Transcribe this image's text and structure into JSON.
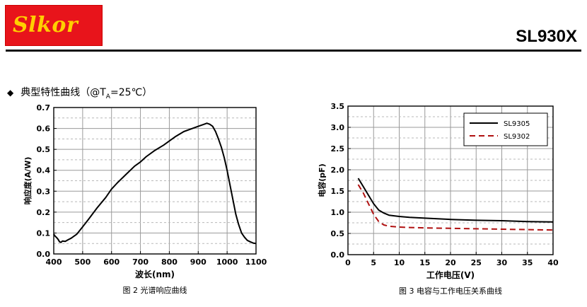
{
  "header": {
    "logo_text": "Slkor",
    "part_number": "SL930X"
  },
  "section": {
    "bullet": "◆",
    "title": "典型特性曲线（@T",
    "title_sub": "A",
    "title_tail": "=25℃）"
  },
  "chart_data": [
    {
      "type": "line",
      "caption": "图 2  光谱响应曲线",
      "xlabel": "波长(nm)",
      "ylabel": "响应度(A/W)",
      "xlim": [
        400,
        1100
      ],
      "ylim": [
        0.0,
        0.7
      ],
      "xticks": [
        "400",
        "500",
        "600",
        "700",
        "800",
        "900",
        "1000",
        "1100"
      ],
      "yticks": [
        "0.0",
        "0.1",
        "0.2",
        "0.3",
        "0.4",
        "0.5",
        "0.6",
        "0.7"
      ],
      "grid": true,
      "series": [
        {
          "color": "#000000",
          "x": [
            400,
            405,
            410,
            415,
            420,
            425,
            430,
            440,
            450,
            460,
            480,
            500,
            520,
            550,
            580,
            600,
            620,
            650,
            680,
            700,
            720,
            750,
            780,
            800,
            820,
            850,
            880,
            900,
            920,
            930,
            940,
            950,
            960,
            970,
            980,
            990,
            1000,
            1010,
            1020,
            1030,
            1040,
            1050,
            1060,
            1070,
            1080,
            1090,
            1100
          ],
          "y": [
            0.095,
            0.085,
            0.078,
            0.07,
            0.058,
            0.055,
            0.062,
            0.06,
            0.068,
            0.075,
            0.095,
            0.13,
            0.165,
            0.22,
            0.27,
            0.31,
            0.34,
            0.38,
            0.42,
            0.44,
            0.465,
            0.495,
            0.52,
            0.54,
            0.56,
            0.585,
            0.6,
            0.61,
            0.62,
            0.625,
            0.62,
            0.61,
            0.585,
            0.55,
            0.51,
            0.46,
            0.4,
            0.33,
            0.26,
            0.19,
            0.14,
            0.1,
            0.08,
            0.065,
            0.058,
            0.052,
            0.05
          ]
        }
      ]
    },
    {
      "type": "line",
      "caption": "图 3  电容与工作电压关系曲线",
      "xlabel": "工作电压(V)",
      "ylabel": "电容(pF)",
      "xlim": [
        0,
        40
      ],
      "ylim": [
        0.0,
        3.5
      ],
      "xticks": [
        "0",
        "5",
        "10",
        "15",
        "20",
        "25",
        "30",
        "35",
        "40"
      ],
      "yticks": [
        "0.0",
        "0.5",
        "1.0",
        "1.5",
        "2.0",
        "2.5",
        "3.0",
        "3.5"
      ],
      "grid": true,
      "legend_position": "top-right",
      "series": [
        {
          "name": "SL9305",
          "color": "#000000",
          "dash": "solid",
          "x": [
            2,
            3,
            4,
            5,
            6,
            7,
            8,
            10,
            12,
            15,
            20,
            25,
            30,
            35,
            40
          ],
          "y": [
            1.8,
            1.6,
            1.4,
            1.2,
            1.05,
            0.98,
            0.93,
            0.9,
            0.88,
            0.86,
            0.83,
            0.81,
            0.8,
            0.78,
            0.77
          ]
        },
        {
          "name": "SL9302",
          "color": "#b01010",
          "dash": "dashed",
          "x": [
            2,
            3,
            4,
            5,
            6,
            7,
            8,
            10,
            12,
            15,
            20,
            25,
            30,
            35,
            40
          ],
          "y": [
            1.65,
            1.45,
            1.2,
            0.95,
            0.78,
            0.7,
            0.67,
            0.65,
            0.64,
            0.63,
            0.62,
            0.61,
            0.6,
            0.59,
            0.58
          ]
        }
      ]
    }
  ]
}
